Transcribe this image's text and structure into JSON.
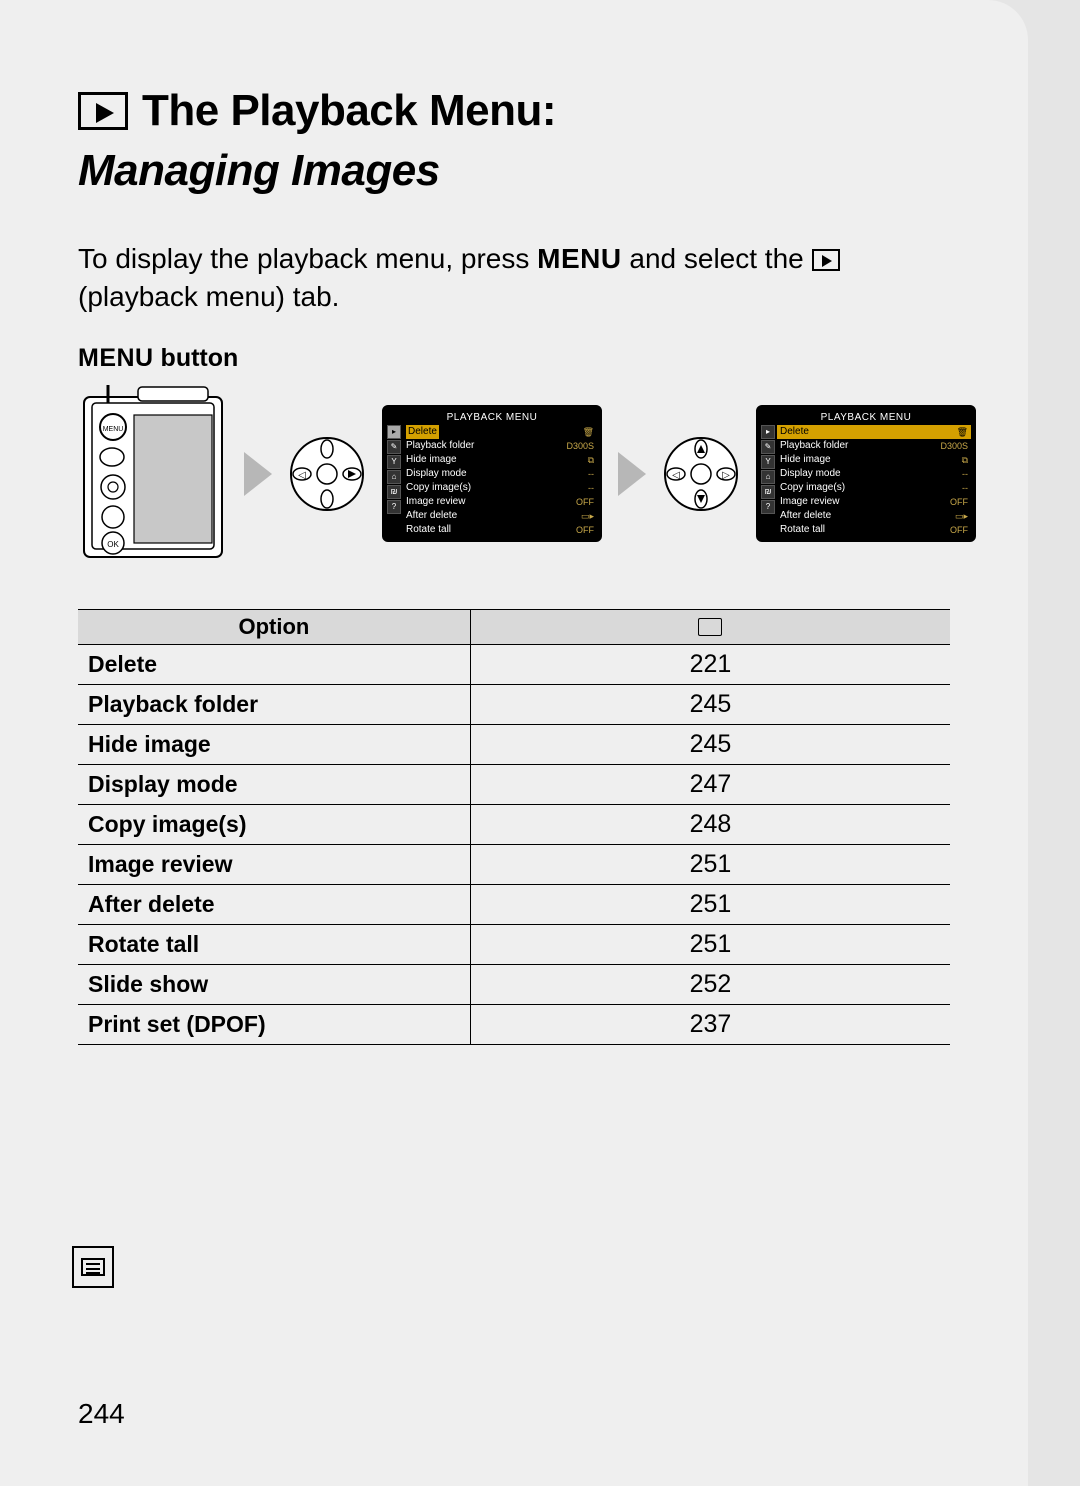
{
  "header": {
    "title": "The Playback Menu:",
    "subtitle": "Managing Images"
  },
  "intro": {
    "pre": "To display the playback menu, press ",
    "menu_word": "MENU",
    "mid": " and select the ",
    "post": " (playback menu) tab."
  },
  "menu_button_label_prefix": "MENU",
  "menu_button_label_suffix": " button",
  "screen": {
    "title": "PLAYBACK MENU",
    "rows": [
      {
        "label": "Delete",
        "value": "🗑"
      },
      {
        "label": "Playback folder",
        "value": "D300S"
      },
      {
        "label": "Hide image",
        "value": "⧉"
      },
      {
        "label": "Display mode",
        "value": "--"
      },
      {
        "label": "Copy image(s)",
        "value": "--"
      },
      {
        "label": "Image review",
        "value": "OFF"
      },
      {
        "label": "After delete",
        "value": "▭▸"
      },
      {
        "label": "Rotate tall",
        "value": "OFF"
      }
    ]
  },
  "options_table": {
    "headers": {
      "option": "Option"
    },
    "rows": [
      {
        "option": "Delete",
        "page": "221"
      },
      {
        "option": "Playback folder",
        "page": "245"
      },
      {
        "option": "Hide image",
        "page": "245"
      },
      {
        "option": "Display mode",
        "page": "247"
      },
      {
        "option": "Copy image(s)",
        "page": "248"
      },
      {
        "option": "Image review",
        "page": "251"
      },
      {
        "option": "After delete",
        "page": "251"
      },
      {
        "option": "Rotate tall",
        "page": "251"
      },
      {
        "option": "Slide show",
        "page": "252"
      },
      {
        "option": "Print set (DPOF)",
        "page": "237"
      }
    ]
  },
  "page_number": "244",
  "colors": {
    "page_bg": "#efefef",
    "outer_bg": "#e5e5e5",
    "table_header_bg": "#d9d9d9",
    "screen_bg": "#000000",
    "screen_hl": "#d4a000",
    "arrow": "#b7b7b7"
  }
}
